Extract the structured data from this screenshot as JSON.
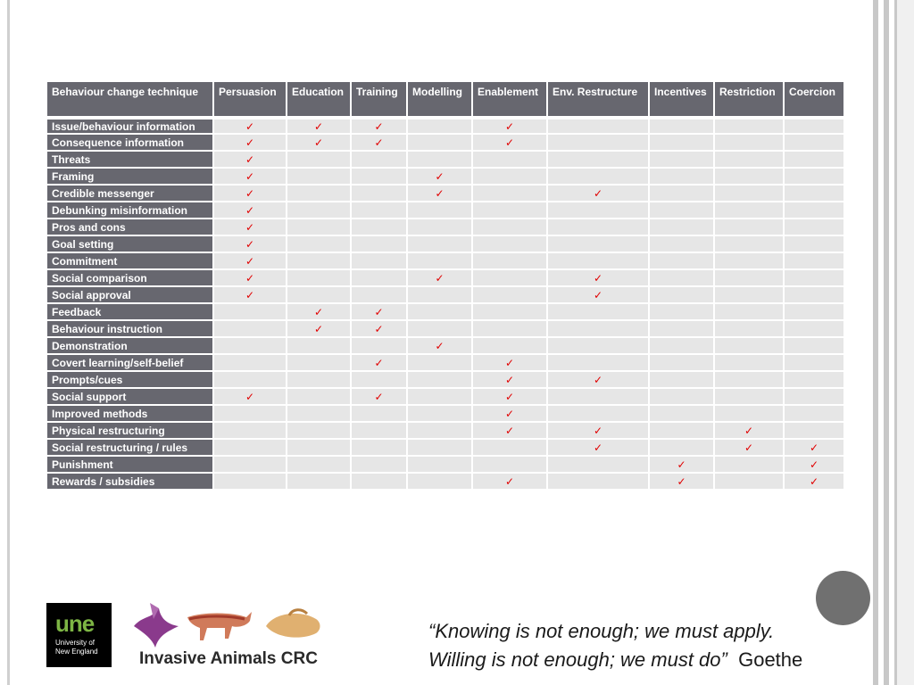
{
  "table": {
    "headers": [
      "Behaviour change technique",
      "Persuasion",
      "Education",
      "Training",
      "Modelling",
      "Enablement",
      "Env. Restructure",
      "Incentives",
      "Restriction",
      "Coercion"
    ],
    "check_symbol": "✓",
    "rows": [
      {
        "label": "Issue/behaviour information",
        "marks": [
          1,
          1,
          1,
          0,
          1,
          0,
          0,
          0,
          0
        ]
      },
      {
        "label": "Consequence information",
        "marks": [
          1,
          1,
          1,
          0,
          1,
          0,
          0,
          0,
          0
        ]
      },
      {
        "label": "Threats",
        "marks": [
          1,
          0,
          0,
          0,
          0,
          0,
          0,
          0,
          0
        ]
      },
      {
        "label": "Framing",
        "marks": [
          1,
          0,
          0,
          1,
          0,
          0,
          0,
          0,
          0
        ]
      },
      {
        "label": "Credible messenger",
        "marks": [
          1,
          0,
          0,
          1,
          0,
          1,
          0,
          0,
          0
        ]
      },
      {
        "label": "Debunking misinformation",
        "marks": [
          1,
          0,
          0,
          0,
          0,
          0,
          0,
          0,
          0
        ]
      },
      {
        "label": "Pros and cons",
        "marks": [
          1,
          0,
          0,
          0,
          0,
          0,
          0,
          0,
          0
        ]
      },
      {
        "label": "Goal setting",
        "marks": [
          1,
          0,
          0,
          0,
          0,
          0,
          0,
          0,
          0
        ]
      },
      {
        "label": "Commitment",
        "marks": [
          1,
          0,
          0,
          0,
          0,
          0,
          0,
          0,
          0
        ]
      },
      {
        "label": "Social comparison",
        "marks": [
          1,
          0,
          0,
          1,
          0,
          1,
          0,
          0,
          0
        ]
      },
      {
        "label": "Social approval",
        "marks": [
          1,
          0,
          0,
          0,
          0,
          1,
          0,
          0,
          0
        ]
      },
      {
        "label": "Feedback",
        "marks": [
          0,
          1,
          1,
          0,
          0,
          0,
          0,
          0,
          0
        ]
      },
      {
        "label": "Behaviour instruction",
        "marks": [
          0,
          1,
          1,
          0,
          0,
          0,
          0,
          0,
          0
        ]
      },
      {
        "label": "Demonstration",
        "marks": [
          0,
          0,
          0,
          1,
          0,
          0,
          0,
          0,
          0
        ]
      },
      {
        "label": "Covert learning/self-belief",
        "marks": [
          0,
          0,
          1,
          0,
          1,
          0,
          0,
          0,
          0
        ]
      },
      {
        "label": "Prompts/cues",
        "marks": [
          0,
          0,
          0,
          0,
          1,
          1,
          0,
          0,
          0
        ]
      },
      {
        "label": "Social support",
        "marks": [
          1,
          0,
          1,
          0,
          1,
          0,
          0,
          0,
          0
        ]
      },
      {
        "label": "Improved methods",
        "marks": [
          0,
          0,
          0,
          0,
          1,
          0,
          0,
          0,
          0
        ]
      },
      {
        "label": "Physical restructuring",
        "marks": [
          0,
          0,
          0,
          0,
          1,
          1,
          0,
          1,
          0
        ]
      },
      {
        "label": "Social restructuring / rules",
        "marks": [
          0,
          0,
          0,
          0,
          0,
          1,
          0,
          1,
          1
        ]
      },
      {
        "label": "Punishment",
        "marks": [
          0,
          0,
          0,
          0,
          0,
          0,
          1,
          0,
          1
        ]
      },
      {
        "label": "Rewards / subsidies",
        "marks": [
          0,
          0,
          0,
          0,
          1,
          0,
          1,
          0,
          1
        ]
      }
    ]
  },
  "logos": {
    "une_mark": "une",
    "une_line1": "University of",
    "une_line2": "New England",
    "crc_name": "Invasive Animals CRC"
  },
  "quote": {
    "line1": "“Knowing is not enough; we must apply.",
    "line2": "Willing is not enough; we must do”",
    "author": "Goethe"
  },
  "colors": {
    "header_bg": "#67676f",
    "cell_bg": "#e6e6e6",
    "check": "#e00000",
    "une_green": "#7db544"
  }
}
